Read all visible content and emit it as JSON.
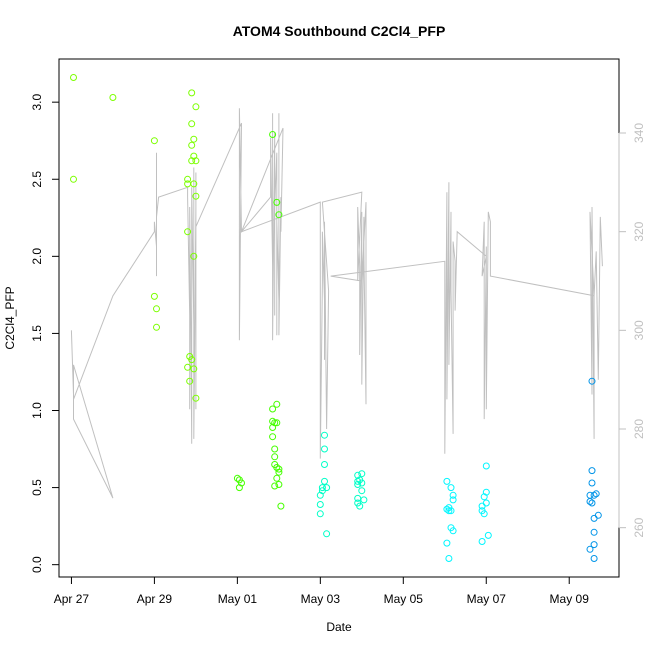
{
  "chart_data": {
    "type": "scatter",
    "title": "ATOM4 Southbound C2Cl4_PFP",
    "xlabel": "Date",
    "ylabel": "C2Cl4_PFP",
    "x_unit": "days since Apr 27",
    "xlim": [
      -0.3,
      13.2
    ],
    "ylim": [
      -0.08,
      3.28
    ],
    "y2lim": [
      250,
      355
    ],
    "grid": false,
    "legend": "none",
    "x_ticks": [
      {
        "x": 0,
        "label": "Apr 27"
      },
      {
        "x": 2,
        "label": "Apr 29"
      },
      {
        "x": 4,
        "label": "May 01"
      },
      {
        "x": 6,
        "label": "May 03"
      },
      {
        "x": 8,
        "label": "May 05"
      },
      {
        "x": 10,
        "label": "May 07"
      },
      {
        "x": 12,
        "label": "May 09"
      }
    ],
    "y_ticks": [
      {
        "v": 0.0,
        "label": "0.0"
      },
      {
        "v": 0.5,
        "label": "0.5"
      },
      {
        "v": 1.0,
        "label": "1.0"
      },
      {
        "v": 1.5,
        "label": "1.5"
      },
      {
        "v": 2.0,
        "label": "2.0"
      },
      {
        "v": 2.5,
        "label": "2.5"
      },
      {
        "v": 3.0,
        "label": "3.0"
      }
    ],
    "y2_ticks": [
      {
        "v": 260,
        "label": "260"
      },
      {
        "v": 280,
        "label": "280"
      },
      {
        "v": 300,
        "label": "300"
      },
      {
        "v": 320,
        "label": "320"
      },
      {
        "v": 340,
        "label": "340"
      }
    ],
    "colors": {
      "line": "#c0c0c0",
      "points_palette": [
        "#7cff00",
        "#46ff00",
        "#00ff5c",
        "#00ffc8",
        "#00f6ff",
        "#00b8ff",
        "#0094e8"
      ]
    },
    "series": [
      {
        "color": "#7cff00",
        "points": [
          [
            0.05,
            3.16
          ],
          [
            0.05,
            2.5
          ],
          [
            1.0,
            3.03
          ],
          [
            2.0,
            2.75
          ],
          [
            2.0,
            1.74
          ],
          [
            2.05,
            1.66
          ],
          [
            2.05,
            1.54
          ],
          [
            2.8,
            2.5
          ],
          [
            2.8,
            2.47
          ],
          [
            2.8,
            2.16
          ],
          [
            2.8,
            1.28
          ],
          [
            2.85,
            1.35
          ],
          [
            2.85,
            1.19
          ],
          [
            2.9,
            3.06
          ],
          [
            2.9,
            2.86
          ],
          [
            2.9,
            2.72
          ],
          [
            2.9,
            2.62
          ],
          [
            2.9,
            1.33
          ],
          [
            2.95,
            2.76
          ],
          [
            2.95,
            2.65
          ],
          [
            2.95,
            2.47
          ],
          [
            2.95,
            2.0
          ],
          [
            2.95,
            1.27
          ],
          [
            3.0,
            2.97
          ],
          [
            3.0,
            2.62
          ],
          [
            3.0,
            2.39
          ],
          [
            3.0,
            1.08
          ]
        ]
      },
      {
        "color": "#46ff00",
        "points": [
          [
            4.0,
            0.56
          ],
          [
            4.05,
            0.55
          ],
          [
            4.05,
            0.5
          ],
          [
            4.1,
            0.53
          ],
          [
            4.85,
            2.79
          ],
          [
            4.85,
            1.01
          ],
          [
            4.85,
            0.93
          ],
          [
            4.85,
            0.89
          ],
          [
            4.85,
            0.83
          ],
          [
            4.9,
            0.92
          ],
          [
            4.9,
            0.75
          ],
          [
            4.9,
            0.7
          ],
          [
            4.9,
            0.65
          ],
          [
            4.9,
            0.51
          ],
          [
            4.95,
            2.35
          ],
          [
            4.95,
            1.04
          ],
          [
            4.95,
            0.92
          ],
          [
            4.95,
            0.63
          ],
          [
            4.95,
            0.56
          ],
          [
            5.0,
            2.27
          ],
          [
            5.0,
            0.62
          ],
          [
            5.0,
            0.6
          ],
          [
            5.0,
            0.52
          ],
          [
            5.05,
            0.38
          ]
        ]
      },
      {
        "color": "#00ffc8",
        "points": [
          [
            6.0,
            0.45
          ],
          [
            6.0,
            0.39
          ],
          [
            6.0,
            0.33
          ],
          [
            6.05,
            0.48
          ],
          [
            6.05,
            0.5
          ],
          [
            6.1,
            0.84
          ],
          [
            6.1,
            0.75
          ],
          [
            6.1,
            0.65
          ],
          [
            6.1,
            0.54
          ],
          [
            6.15,
            0.5
          ],
          [
            6.15,
            0.2
          ],
          [
            6.9,
            0.58
          ],
          [
            6.9,
            0.54
          ],
          [
            6.9,
            0.52
          ],
          [
            6.9,
            0.43
          ],
          [
            6.9,
            0.4
          ],
          [
            6.95,
            0.55
          ],
          [
            6.95,
            0.38
          ],
          [
            7.0,
            0.59
          ],
          [
            7.0,
            0.53
          ],
          [
            7.0,
            0.48
          ],
          [
            7.05,
            0.42
          ]
        ]
      },
      {
        "color": "#00f6ff",
        "points": [
          [
            9.05,
            0.54
          ],
          [
            9.05,
            0.36
          ],
          [
            9.05,
            0.14
          ],
          [
            9.1,
            0.37
          ],
          [
            9.1,
            0.35
          ],
          [
            9.1,
            0.04
          ],
          [
            9.15,
            0.5
          ],
          [
            9.15,
            0.35
          ],
          [
            9.15,
            0.24
          ],
          [
            9.2,
            0.45
          ],
          [
            9.2,
            0.42
          ],
          [
            9.2,
            0.22
          ],
          [
            9.9,
            0.38
          ],
          [
            9.9,
            0.35
          ],
          [
            9.9,
            0.15
          ],
          [
            9.95,
            0.44
          ],
          [
            9.95,
            0.33
          ],
          [
            10.0,
            0.64
          ],
          [
            10.0,
            0.47
          ],
          [
            10.0,
            0.4
          ],
          [
            10.05,
            0.19
          ]
        ]
      },
      {
        "color": "#0094e8",
        "points": [
          [
            12.5,
            0.45
          ],
          [
            12.5,
            0.41
          ],
          [
            12.5,
            0.1
          ],
          [
            12.55,
            1.19
          ],
          [
            12.55,
            0.61
          ],
          [
            12.55,
            0.53
          ],
          [
            12.55,
            0.4
          ],
          [
            12.6,
            0.45
          ],
          [
            12.6,
            0.3
          ],
          [
            12.6,
            0.21
          ],
          [
            12.6,
            0.13
          ],
          [
            12.6,
            0.04
          ],
          [
            12.65,
            0.46
          ],
          [
            12.7,
            0.32
          ]
        ]
      }
    ],
    "line_series": {
      "axis": "right",
      "color": "#c0c0c0",
      "points": [
        [
          0.0,
          300
        ],
        [
          0.05,
          287
        ],
        [
          0.05,
          282
        ],
        [
          0.05,
          293
        ],
        [
          1.0,
          266
        ],
        [
          0.05,
          282
        ],
        [
          0.05,
          286
        ],
        [
          1.0,
          307
        ],
        [
          2.0,
          320
        ],
        [
          2.0,
          322
        ],
        [
          2.05,
          317
        ],
        [
          2.05,
          336
        ],
        [
          2.05,
          311
        ],
        [
          2.05,
          323
        ],
        [
          2.1,
          327
        ],
        [
          2.8,
          329
        ],
        [
          2.8,
          327
        ],
        [
          2.85,
          303
        ],
        [
          2.85,
          287
        ],
        [
          2.85,
          301
        ],
        [
          2.85,
          284
        ],
        [
          2.85,
          325
        ],
        [
          2.9,
          278
        ],
        [
          2.9,
          327
        ],
        [
          2.9,
          277
        ],
        [
          2.9,
          329
        ],
        [
          2.95,
          301
        ],
        [
          2.95,
          285
        ],
        [
          2.95,
          333
        ],
        [
          2.95,
          278
        ],
        [
          3.0,
          325
        ],
        [
          3.0,
          284
        ],
        [
          3.0,
          322
        ],
        [
          3.0,
          329
        ],
        [
          3.0,
          332
        ],
        [
          3.0,
          321
        ],
        [
          4.1,
          342
        ],
        [
          4.05,
          298
        ],
        [
          4.05,
          345
        ],
        [
          4.1,
          320
        ],
        [
          4.8,
          327
        ],
        [
          4.8,
          339
        ],
        [
          4.85,
          313
        ],
        [
          4.85,
          302
        ],
        [
          4.85,
          344
        ],
        [
          4.85,
          298
        ],
        [
          4.9,
          340
        ],
        [
          4.9,
          303
        ],
        [
          4.9,
          325
        ],
        [
          4.95,
          336
        ],
        [
          4.95,
          299
        ],
        [
          4.95,
          322
        ],
        [
          5.0,
          306
        ],
        [
          5.0,
          344
        ],
        [
          5.0,
          299
        ],
        [
          5.05,
          327
        ],
        [
          5.05,
          320
        ],
        [
          5.1,
          341
        ],
        [
          4.1,
          320
        ],
        [
          6.0,
          326
        ],
        [
          6.0,
          274
        ],
        [
          6.05,
          310
        ],
        [
          6.05,
          320
        ],
        [
          6.1,
          306
        ],
        [
          6.1,
          294
        ],
        [
          6.1,
          322
        ],
        [
          6.15,
          280
        ],
        [
          6.2,
          308
        ],
        [
          6.05,
          326
        ],
        [
          7.0,
          328
        ],
        [
          6.9,
          310
        ],
        [
          6.9,
          325
        ],
        [
          6.95,
          313
        ],
        [
          6.95,
          295
        ],
        [
          7.0,
          324
        ],
        [
          7.0,
          289
        ],
        [
          7.05,
          323
        ],
        [
          7.05,
          316
        ],
        [
          7.1,
          285
        ],
        [
          7.1,
          326
        ],
        [
          7.0,
          310
        ],
        [
          6.25,
          311
        ],
        [
          9.0,
          314
        ],
        [
          9.0,
          275
        ],
        [
          9.05,
          328
        ],
        [
          9.05,
          286
        ],
        [
          9.1,
          330
        ],
        [
          9.1,
          293
        ],
        [
          9.15,
          324
        ],
        [
          9.15,
          308
        ],
        [
          9.2,
          279
        ],
        [
          9.2,
          318
        ],
        [
          9.25,
          314
        ],
        [
          9.25,
          304
        ],
        [
          9.3,
          320
        ],
        [
          10.0,
          315
        ],
        [
          9.9,
          311
        ],
        [
          9.95,
          322
        ],
        [
          9.95,
          282
        ],
        [
          10.0,
          317
        ],
        [
          10.0,
          284
        ],
        [
          10.05,
          324
        ],
        [
          10.1,
          322
        ],
        [
          10.1,
          311
        ],
        [
          12.6,
          307
        ],
        [
          12.5,
          324
        ],
        [
          12.55,
          287
        ],
        [
          12.55,
          325
        ],
        [
          12.6,
          278
        ],
        [
          12.6,
          307
        ],
        [
          12.65,
          316
        ],
        [
          12.7,
          290
        ],
        [
          12.75,
          323
        ],
        [
          12.8,
          313
        ]
      ]
    }
  }
}
